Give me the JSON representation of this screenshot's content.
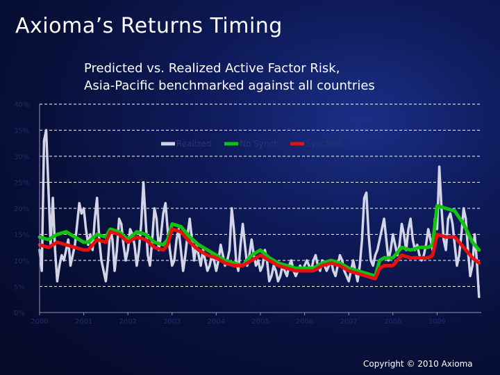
{
  "slide": {
    "title": "Axioma’s Returns Timing",
    "copyright": "Copyright © 2010 Axioma"
  },
  "colors": {
    "realized": "#d3d4e6",
    "no_synch": "#12c212",
    "synched": "#e31111",
    "grid": "#ffffff"
  },
  "chart_data": {
    "type": "line",
    "title": [
      "Predicted vs. Realized Active Factor Risk,",
      "Asia-Pacific benchmarked against all countries"
    ],
    "xlabel": "",
    "ylabel": "",
    "xlim": [
      2000,
      2010
    ],
    "ylim": [
      0,
      40
    ],
    "x_ticks": [
      "2000",
      "2001",
      "2002",
      "2003",
      "2004",
      "2005",
      "2006",
      "2007",
      "2008",
      "2009"
    ],
    "y_ticks": [
      "0%",
      "5%",
      "10%",
      "15%",
      "20%",
      "25%",
      "30%",
      "35%",
      "40%"
    ],
    "grid": true,
    "legend_position": "top",
    "series": [
      {
        "name": "Realized",
        "x": [
          2000.0,
          2000.05,
          2000.1,
          2000.15,
          2000.2,
          2000.25,
          2000.3,
          2000.35,
          2000.4,
          2000.45,
          2000.5,
          2000.55,
          2000.6,
          2000.65,
          2000.7,
          2000.75,
          2000.8,
          2000.85,
          2000.9,
          2000.95,
          2001.0,
          2001.05,
          2001.1,
          2001.15,
          2001.2,
          2001.25,
          2001.3,
          2001.35,
          2001.4,
          2001.45,
          2001.5,
          2001.55,
          2001.6,
          2001.65,
          2001.7,
          2001.75,
          2001.8,
          2001.85,
          2001.9,
          2001.95,
          2002.0,
          2002.05,
          2002.1,
          2002.15,
          2002.2,
          2002.25,
          2002.3,
          2002.35,
          2002.4,
          2002.45,
          2002.5,
          2002.55,
          2002.6,
          2002.65,
          2002.7,
          2002.75,
          2002.8,
          2002.85,
          2002.9,
          2002.95,
          2003.0,
          2003.05,
          2003.1,
          2003.15,
          2003.2,
          2003.25,
          2003.3,
          2003.35,
          2003.4,
          2003.45,
          2003.5,
          2003.55,
          2003.6,
          2003.65,
          2003.7,
          2003.75,
          2003.8,
          2003.85,
          2003.9,
          2003.95,
          2004.0,
          2004.05,
          2004.1,
          2004.15,
          2004.2,
          2004.25,
          2004.3,
          2004.35,
          2004.4,
          2004.45,
          2004.5,
          2004.55,
          2004.6,
          2004.65,
          2004.7,
          2004.75,
          2004.8,
          2004.85,
          2004.9,
          2004.95,
          2005.0,
          2005.05,
          2005.1,
          2005.15,
          2005.2,
          2005.25,
          2005.3,
          2005.35,
          2005.4,
          2005.45,
          2005.5,
          2005.55,
          2005.6,
          2005.65,
          2005.7,
          2005.75,
          2005.8,
          2005.85,
          2005.9,
          2005.95,
          2006.0,
          2006.05,
          2006.1,
          2006.15,
          2006.2,
          2006.25,
          2006.3,
          2006.35,
          2006.4,
          2006.45,
          2006.5,
          2006.55,
          2006.6,
          2006.65,
          2006.7,
          2006.75,
          2006.8,
          2006.85,
          2006.9,
          2006.95,
          2007.0,
          2007.05,
          2007.1,
          2007.15,
          2007.2,
          2007.25,
          2007.3,
          2007.35,
          2007.4,
          2007.45,
          2007.5,
          2007.55,
          2007.6,
          2007.65,
          2007.7,
          2007.75,
          2007.8,
          2007.85,
          2007.9,
          2007.95,
          2008.0,
          2008.05,
          2008.1,
          2008.15,
          2008.2,
          2008.25,
          2008.3,
          2008.35,
          2008.4,
          2008.45,
          2008.5,
          2008.55,
          2008.6,
          2008.65,
          2008.7,
          2008.75,
          2008.8,
          2008.85,
          2008.9,
          2008.95,
          2009.0,
          2009.05,
          2009.1,
          2009.15,
          2009.2,
          2009.25,
          2009.3,
          2009.35,
          2009.4,
          2009.45,
          2009.5,
          2009.55,
          2009.6,
          2009.65,
          2009.7,
          2009.75,
          2009.8,
          2009.85,
          2009.9,
          2009.95
        ],
        "y": [
          12,
          8,
          33,
          35,
          24,
          13,
          22,
          12,
          6,
          9,
          11,
          10,
          12,
          14,
          9,
          11,
          13,
          17,
          21,
          19,
          20,
          16,
          13,
          15,
          12,
          18,
          22,
          14,
          10,
          8,
          6,
          10,
          16,
          14,
          8,
          12,
          18,
          17,
          13,
          10,
          12,
          16,
          15,
          13,
          9,
          12,
          17,
          25,
          18,
          11,
          9,
          14,
          20,
          18,
          12,
          15,
          19,
          21,
          16,
          12,
          9,
          10,
          14,
          16,
          12,
          8,
          11,
          15,
          18,
          14,
          10,
          13,
          11,
          9,
          12,
          10,
          8,
          9,
          11,
          10,
          8,
          10,
          13,
          11,
          9,
          10,
          12,
          20,
          16,
          10,
          8,
          13,
          17,
          13,
          9,
          11,
          14,
          11,
          9,
          10,
          8,
          9,
          12,
          10,
          6,
          7,
          9,
          8,
          6,
          7,
          9,
          8,
          7,
          9,
          10,
          8,
          7,
          8,
          9,
          8,
          9,
          10,
          9,
          8,
          10,
          11,
          9,
          8,
          10,
          9,
          8,
          9,
          10,
          8,
          7,
          9,
          11,
          10,
          8,
          7,
          6,
          8,
          10,
          8,
          6,
          9,
          14,
          22,
          23,
          15,
          10,
          9,
          11,
          12,
          14,
          16,
          18,
          14,
          10,
          12,
          15,
          13,
          11,
          13,
          17,
          15,
          12,
          16,
          18,
          14,
          12,
          13,
          11,
          10,
          11,
          13,
          16,
          14,
          12,
          18,
          16,
          28,
          20,
          14,
          12,
          18,
          19,
          17,
          13,
          9,
          11,
          15,
          20,
          18,
          12,
          7,
          9,
          15,
          10,
          3
        ]
      },
      {
        "name": "No Synch",
        "x": [
          2000.0,
          2000.2,
          2000.4,
          2000.6,
          2000.8,
          2001.0,
          2001.1,
          2001.3,
          2001.5,
          2001.6,
          2001.8,
          2002.0,
          2002.2,
          2002.4,
          2002.6,
          2002.8,
          2002.9,
          2003.0,
          2003.2,
          2003.4,
          2003.6,
          2003.8,
          2004.0,
          2004.2,
          2004.4,
          2004.6,
          2004.8,
          2005.0,
          2005.2,
          2005.4,
          2005.6,
          2005.8,
          2006.0,
          2006.2,
          2006.4,
          2006.6,
          2006.8,
          2007.0,
          2007.2,
          2007.4,
          2007.6,
          2007.7,
          2007.8,
          2008.0,
          2008.2,
          2008.4,
          2008.6,
          2008.8,
          2008.9,
          2009.0,
          2009.2,
          2009.4,
          2009.6,
          2009.8,
          2009.95
        ],
        "y": [
          14.5,
          14,
          15,
          15.5,
          14.5,
          13.5,
          13.5,
          15,
          14.5,
          16,
          15.5,
          14,
          15.5,
          15,
          13.5,
          13,
          14,
          17,
          16.5,
          14.5,
          13,
          12,
          11,
          10,
          9.5,
          9,
          11,
          12,
          10.5,
          9.5,
          9,
          8.5,
          8.5,
          8.5,
          9.5,
          10,
          9.5,
          8.5,
          8,
          7.5,
          7,
          10,
          10.5,
          10.5,
          12.5,
          12,
          12.5,
          12.5,
          13,
          20.5,
          20,
          19.5,
          17,
          13.5,
          12
        ]
      },
      {
        "name": "Synched",
        "x": [
          2000.0,
          2000.2,
          2000.4,
          2000.6,
          2000.8,
          2001.0,
          2001.1,
          2001.3,
          2001.5,
          2001.6,
          2001.8,
          2002.0,
          2002.2,
          2002.4,
          2002.6,
          2002.8,
          2002.9,
          2003.0,
          2003.2,
          2003.4,
          2003.6,
          2003.8,
          2004.0,
          2004.2,
          2004.4,
          2004.6,
          2004.8,
          2005.0,
          2005.2,
          2005.4,
          2005.6,
          2005.8,
          2006.0,
          2006.2,
          2006.4,
          2006.6,
          2006.8,
          2007.0,
          2007.2,
          2007.4,
          2007.6,
          2007.7,
          2007.8,
          2008.0,
          2008.2,
          2008.4,
          2008.6,
          2008.8,
          2008.9,
          2009.0,
          2009.2,
          2009.4,
          2009.6,
          2009.8,
          2009.95
        ],
        "y": [
          13,
          12.5,
          13.5,
          13,
          12.5,
          12,
          12,
          14,
          13.5,
          15.5,
          15,
          13.5,
          14.5,
          14,
          12.5,
          12,
          13,
          16,
          15.5,
          13.5,
          12,
          11,
          10.5,
          9.5,
          9,
          9,
          10,
          11,
          10,
          9,
          8.5,
          8,
          8,
          8,
          9,
          9.5,
          9,
          8,
          7.5,
          7,
          6.5,
          8.5,
          9,
          9,
          11,
          10.5,
          10.5,
          10.5,
          11,
          15,
          14.5,
          14.5,
          12.5,
          10.5,
          9.5
        ]
      }
    ]
  }
}
